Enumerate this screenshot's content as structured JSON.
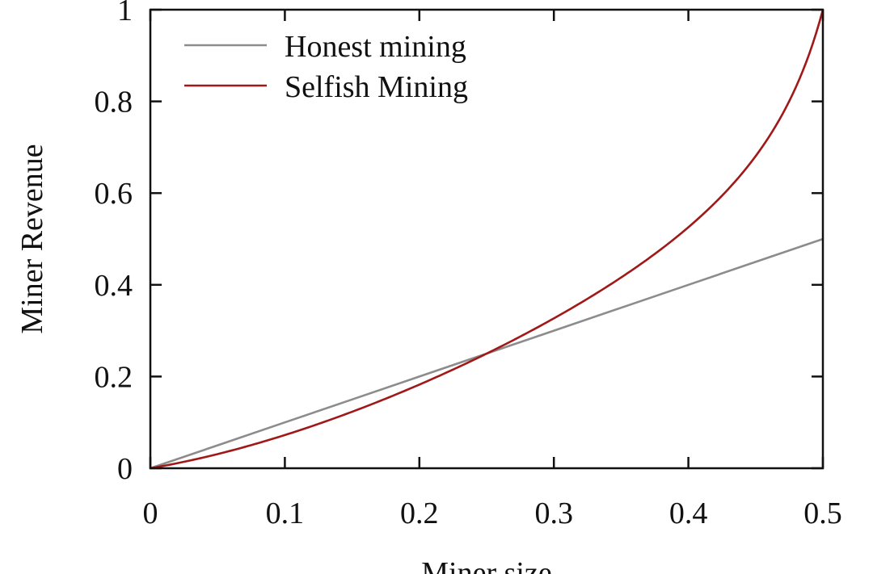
{
  "chart_data": {
    "type": "line",
    "title": "",
    "xlabel": "Miner size",
    "ylabel": "Miner Revenue",
    "xlim": [
      0,
      0.5
    ],
    "ylim": [
      0,
      1
    ],
    "xticks": [
      "0",
      "0.1",
      "0.2",
      "0.3",
      "0.4",
      "0.5"
    ],
    "yticks": [
      "0",
      "0.2",
      "0.4",
      "0.6",
      "0.8",
      "1"
    ],
    "grid": false,
    "legend_position": "top-left",
    "series": [
      {
        "name": "Honest mining",
        "color": "#8c8c8c",
        "x": [
          0,
          0.05,
          0.1,
          0.15,
          0.2,
          0.25,
          0.3,
          0.35,
          0.4,
          0.45,
          0.5
        ],
        "y": [
          0,
          0.05,
          0.1,
          0.15,
          0.2,
          0.25,
          0.3,
          0.35,
          0.4,
          0.45,
          0.5
        ]
      },
      {
        "name": "Selfish Mining",
        "color": "#a01818",
        "x": [
          0,
          0.025,
          0.05,
          0.075,
          0.1,
          0.125,
          0.15,
          0.175,
          0.2,
          0.225,
          0.25,
          0.275,
          0.3,
          0.325,
          0.35,
          0.375,
          0.4,
          0.425,
          0.45,
          0.475,
          0.5
        ],
        "y": [
          0,
          0.002,
          0.008,
          0.019,
          0.036,
          0.059,
          0.089,
          0.126,
          0.171,
          0.225,
          0.286,
          0.319,
          0.36,
          0.41,
          0.39,
          0.45,
          0.52,
          0.59,
          0.68,
          0.81,
          1.0
        ]
      }
    ]
  }
}
